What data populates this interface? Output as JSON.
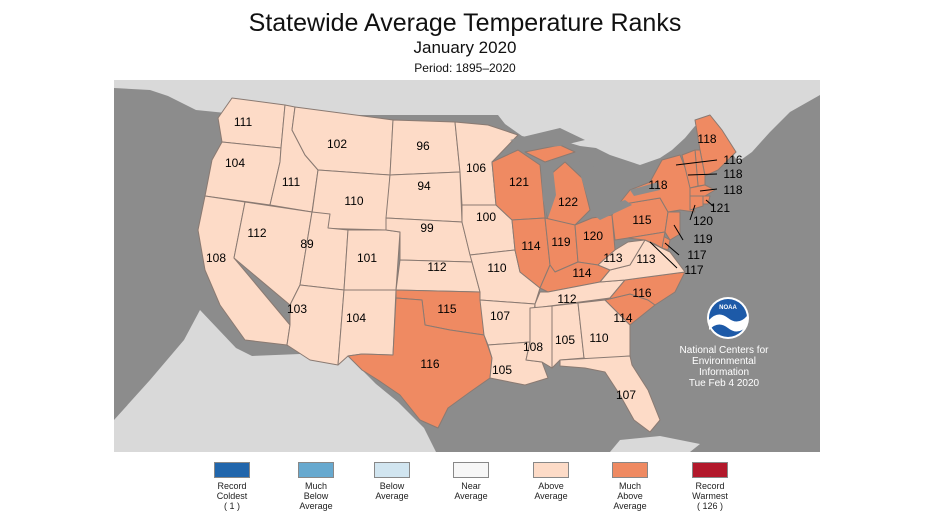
{
  "title": "Statewide Average Temperature Ranks",
  "subtitle": "January 2020",
  "period": "Period: 1895–2020",
  "agency": {
    "logo_text": "NOAA",
    "lines": [
      "National Centers for",
      "Environmental",
      "Information",
      "Tue Feb  4 2020"
    ]
  },
  "colors": {
    "ocean": "#8c8c8c",
    "land_other": "#d9d9d9",
    "above_average": "#fddbc7",
    "much_above_average": "#ef8a62",
    "state_border": "#8a7a72"
  },
  "legend": [
    {
      "lines": [
        "Record",
        "Coldest",
        "( 1 )"
      ],
      "color": "#2166ac"
    },
    {
      "lines": [
        "Much",
        "Below",
        "Average"
      ],
      "color": "#67a9cf"
    },
    {
      "lines": [
        "Below",
        "Average"
      ],
      "color": "#d1e5f0"
    },
    {
      "lines": [
        "Near",
        "Average"
      ],
      "color": "#f7f7f7"
    },
    {
      "lines": [
        "Above",
        "Average"
      ],
      "color": "#fddbc7"
    },
    {
      "lines": [
        "Much",
        "Above",
        "Average"
      ],
      "color": "#ef8a62"
    },
    {
      "lines": [
        "Record",
        "Warmest",
        "( 126 )"
      ],
      "color": "#b2182b"
    }
  ],
  "states": [
    {
      "abbr": "WA",
      "rank": "111",
      "category": "above"
    },
    {
      "abbr": "OR",
      "rank": "104",
      "category": "above"
    },
    {
      "abbr": "CA",
      "rank": "108",
      "category": "above"
    },
    {
      "abbr": "ID",
      "rank": "111",
      "category": "above"
    },
    {
      "abbr": "NV",
      "rank": "112",
      "category": "above"
    },
    {
      "abbr": "MT",
      "rank": "102",
      "category": "above"
    },
    {
      "abbr": "WY",
      "rank": "110",
      "category": "above"
    },
    {
      "abbr": "UT",
      "rank": "89",
      "category": "above"
    },
    {
      "abbr": "AZ",
      "rank": "103",
      "category": "above"
    },
    {
      "abbr": "CO",
      "rank": "101",
      "category": "above"
    },
    {
      "abbr": "NM",
      "rank": "104",
      "category": "above"
    },
    {
      "abbr": "ND",
      "rank": "96",
      "category": "above"
    },
    {
      "abbr": "SD",
      "rank": "94",
      "category": "above"
    },
    {
      "abbr": "NE",
      "rank": "99",
      "category": "above"
    },
    {
      "abbr": "KS",
      "rank": "112",
      "category": "above"
    },
    {
      "abbr": "OK",
      "rank": "115",
      "category": "much_above"
    },
    {
      "abbr": "TX",
      "rank": "116",
      "category": "much_above"
    },
    {
      "abbr": "MN",
      "rank": "106",
      "category": "above"
    },
    {
      "abbr": "IA",
      "rank": "100",
      "category": "above"
    },
    {
      "abbr": "MO",
      "rank": "110",
      "category": "above"
    },
    {
      "abbr": "AR",
      "rank": "107",
      "category": "above"
    },
    {
      "abbr": "LA",
      "rank": "105",
      "category": "above"
    },
    {
      "abbr": "WI",
      "rank": "121",
      "category": "much_above"
    },
    {
      "abbr": "IL",
      "rank": "114",
      "category": "much_above"
    },
    {
      "abbr": "MI",
      "rank": "122",
      "category": "much_above"
    },
    {
      "abbr": "IN",
      "rank": "119",
      "category": "much_above"
    },
    {
      "abbr": "OH",
      "rank": "120",
      "category": "much_above"
    },
    {
      "abbr": "KY",
      "rank": "114",
      "category": "much_above"
    },
    {
      "abbr": "TN",
      "rank": "112",
      "category": "above"
    },
    {
      "abbr": "MS",
      "rank": "108",
      "category": "above"
    },
    {
      "abbr": "AL",
      "rank": "105",
      "category": "above"
    },
    {
      "abbr": "GA",
      "rank": "110",
      "category": "above"
    },
    {
      "abbr": "FL",
      "rank": "107",
      "category": "above"
    },
    {
      "abbr": "SC",
      "rank": "114",
      "category": "much_above"
    },
    {
      "abbr": "NC",
      "rank": "116",
      "category": "much_above"
    },
    {
      "abbr": "VA",
      "rank": "113",
      "category": "above"
    },
    {
      "abbr": "WV",
      "rank": "113",
      "category": "above"
    },
    {
      "abbr": "PA",
      "rank": "115",
      "category": "much_above"
    },
    {
      "abbr": "NY",
      "rank": "118",
      "category": "much_above"
    },
    {
      "abbr": "ME",
      "rank": "118",
      "category": "much_above"
    },
    {
      "abbr": "NH",
      "rank": "116",
      "category": "much_above"
    },
    {
      "abbr": "VT",
      "rank": "118",
      "category": "much_above"
    },
    {
      "abbr": "MA",
      "rank": "118",
      "category": "much_above"
    },
    {
      "abbr": "RI",
      "rank": "121",
      "category": "much_above"
    },
    {
      "abbr": "CT",
      "rank": "120",
      "category": "much_above"
    },
    {
      "abbr": "NJ",
      "rank": "119",
      "category": "much_above"
    },
    {
      "abbr": "DE",
      "rank": "117",
      "category": "much_above"
    },
    {
      "abbr": "MD",
      "rank": "117",
      "category": "much_above"
    }
  ]
}
